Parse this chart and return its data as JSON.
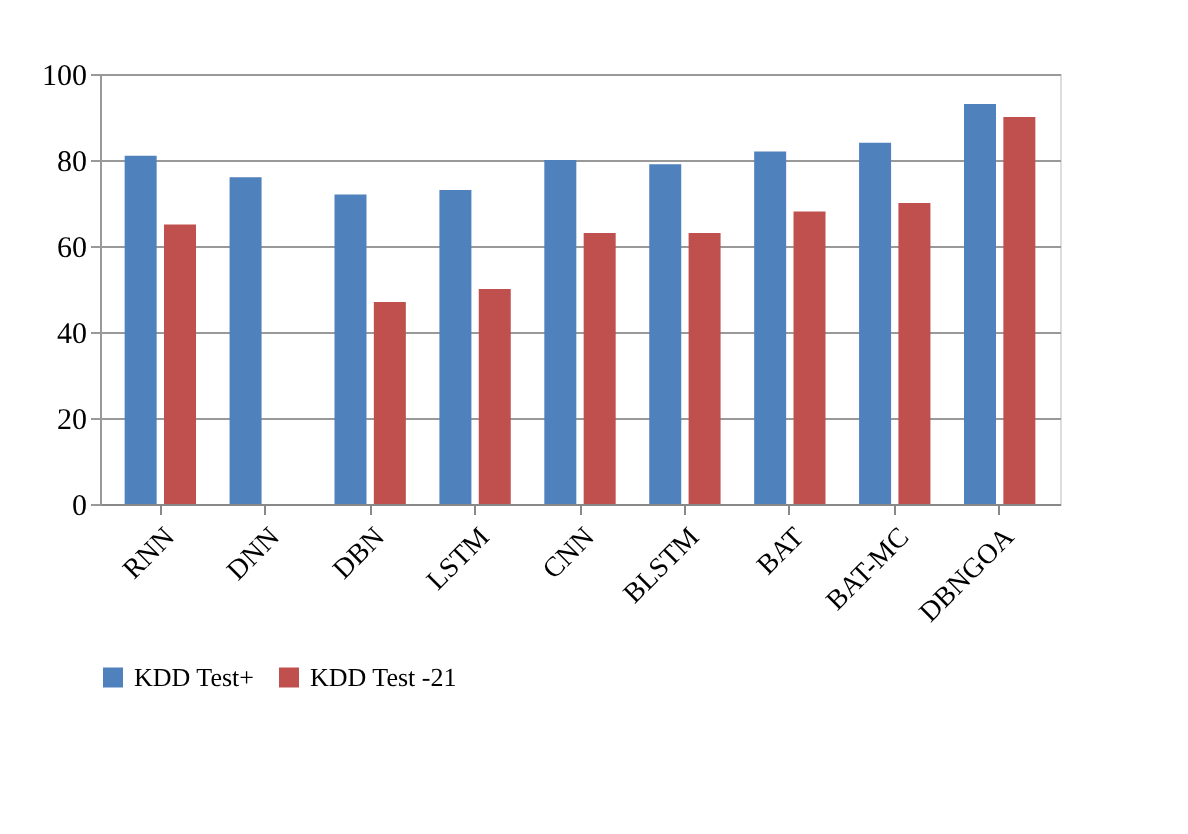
{
  "chart_data": {
    "type": "bar",
    "categories": [
      "RNN",
      "DNN",
      "DBN",
      "LSTM",
      "CNN",
      "BLSTM",
      "BAT",
      "BAT-MC",
      "DBNGOA"
    ],
    "series": [
      {
        "name": "KDD Test+",
        "color": "#4f81bd",
        "values": [
          81,
          76,
          72,
          73,
          80,
          79,
          82,
          84,
          93
        ]
      },
      {
        "name": "KDD Test -21",
        "color": "#c0504d",
        "values": [
          65,
          0,
          47,
          50,
          63,
          63,
          68,
          70,
          90
        ]
      }
    ],
    "ylim": [
      0,
      100
    ],
    "yticks": [
      0,
      20,
      40,
      60,
      80,
      100
    ],
    "grid": "y",
    "legend": "bottom"
  }
}
